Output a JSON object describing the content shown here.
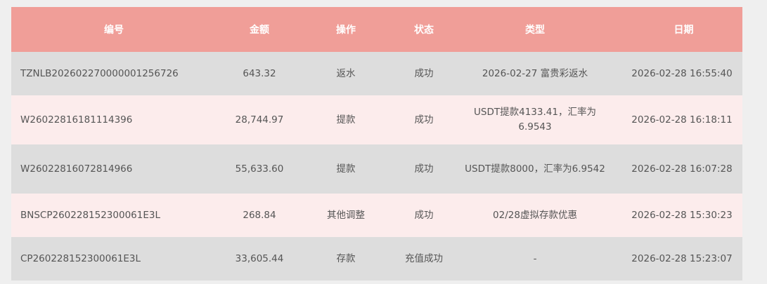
{
  "colors": {
    "header_bg": "#f09e98",
    "row_gray": "#dddddd",
    "row_pink": "#fcecec",
    "page_bg": "#efefef"
  },
  "headers": [
    "编号",
    "金额",
    "操作",
    "状态",
    "类型",
    "日期"
  ],
  "rows": [
    {
      "id": "TZNLB202602270000001256726",
      "amount": "643.32",
      "action": "返水",
      "status": "成功",
      "type": "2026-02-27 富贵彩返水",
      "date": "2026-02-28 16:55:40"
    },
    {
      "id": "W26022816181114396",
      "amount": "28,744.97",
      "action": "提款",
      "status": "成功",
      "type": "USDT提款4133.41，汇率为6.9543",
      "date": "2026-02-28 16:18:11"
    },
    {
      "id": "W26022816072814966",
      "amount": "55,633.60",
      "action": "提款",
      "status": "成功",
      "type": "USDT提款8000，汇率为6.9542",
      "date": "2026-02-28 16:07:28"
    },
    {
      "id": "BNSCP260228152300061E3L",
      "amount": "268.84",
      "action": "其他调整",
      "status": "成功",
      "type": "02/28虚拟存款优惠",
      "date": "2026-02-28 15:30:23"
    },
    {
      "id": "CP260228152300061E3L",
      "amount": "33,605.44",
      "action": "存款",
      "status": "充值成功",
      "type": "-",
      "date": "2026-02-28 15:23:07"
    }
  ]
}
